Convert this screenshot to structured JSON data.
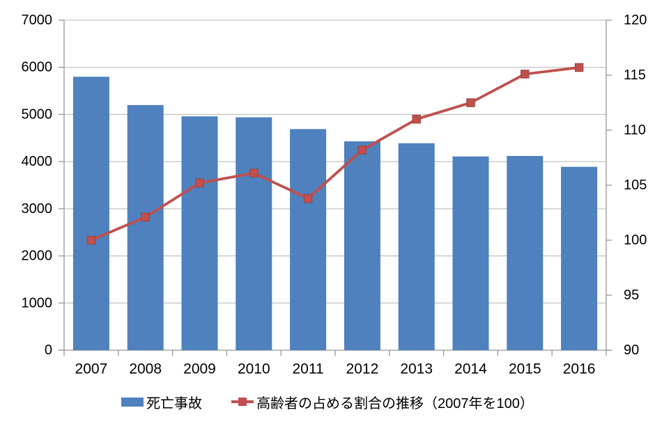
{
  "chart_data": {
    "type": "combo-bar-line",
    "title": "",
    "categories": [
      "2007",
      "2008",
      "2009",
      "2010",
      "2011",
      "2012",
      "2013",
      "2014",
      "2015",
      "2016"
    ],
    "series": [
      {
        "name": "死亡事故",
        "type": "bar",
        "axis": "left",
        "color": "#4E81BD",
        "values": [
          5800,
          5200,
          4960,
          4940,
          4690,
          4430,
          4390,
          4110,
          4120,
          3890
        ]
      },
      {
        "name": "高齢者の占める割合の推移（2007年を100）",
        "type": "line",
        "axis": "right",
        "color": "#C0504D",
        "marker": "square",
        "values": [
          100,
          102.1,
          105.2,
          106.1,
          103.8,
          108.2,
          111,
          112.5,
          115.1,
          115.7
        ]
      }
    ],
    "left_axis": {
      "min": 0,
      "max": 7000,
      "step": 1000,
      "tick_labels": [
        "0",
        "1000",
        "2000",
        "3000",
        "4000",
        "5000",
        "6000",
        "7000"
      ]
    },
    "right_axis": {
      "min": 90,
      "max": 120,
      "step": 5,
      "tick_labels": [
        "90",
        "95",
        "100",
        "105",
        "110",
        "115",
        "120"
      ]
    },
    "xlabel": "",
    "ylabel": "",
    "grid": "horizontal",
    "legend_position": "bottom",
    "colors": {
      "bar": "#4E81BD",
      "line": "#C0504D",
      "line_marker_border": "#9E413E",
      "gridline": "#C3C3C3",
      "axis": "#969696",
      "text": "#000000",
      "background": "#FFFFFF"
    }
  }
}
